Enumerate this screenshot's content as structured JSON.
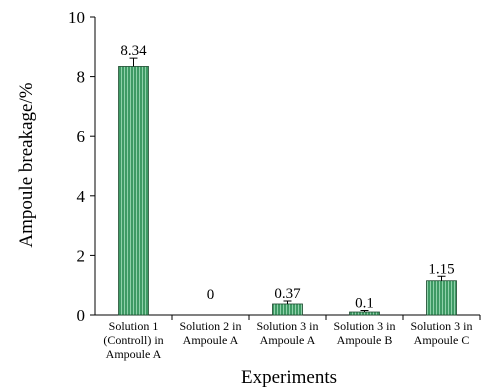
{
  "chart_data": {
    "type": "bar",
    "title": "",
    "xlabel": "Experiments",
    "ylabel": "Ampoule breakage/%",
    "ylim": [
      0,
      10
    ],
    "yticks": [
      0,
      2,
      4,
      6,
      8,
      10
    ],
    "categories": [
      [
        "Solution 1",
        "(Controll) in",
        "Ampoule A"
      ],
      [
        "Solution 2 in",
        "Ampoule A"
      ],
      [
        "Solution 3 in",
        "Ampoule A"
      ],
      [
        "Solution 3 in",
        "Ampoule B"
      ],
      [
        "Solution 3 in",
        "Ampoule C"
      ]
    ],
    "values": [
      8.34,
      0,
      0.37,
      0.1,
      1.15
    ],
    "value_labels": [
      "8.34",
      "0",
      "0.37",
      "0.1",
      "1.15"
    ],
    "error": [
      0.28,
      0,
      0.1,
      0.05,
      0.15
    ],
    "bar_color": "#3e9a64",
    "bar_hatch_color": "#8fd1aa",
    "grid": false,
    "legend": "none"
  }
}
